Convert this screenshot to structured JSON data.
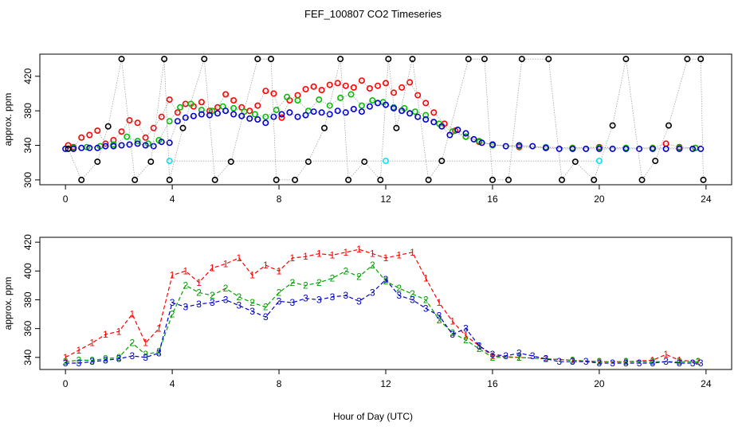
{
  "figure": {
    "title": "FEF_100807  CO2 Timeseries",
    "xlabel": "Hour of Day (UTC)"
  },
  "chart_data": [
    {
      "type": "scatter",
      "ylabel": "approx. ppm",
      "xlim": [
        0,
        24
      ],
      "ylim": [
        300,
        440
      ],
      "xticks": [
        0,
        4,
        8,
        12,
        16,
        20,
        24
      ],
      "yticks": [
        300,
        340,
        380,
        420
      ],
      "grid": false,
      "series": [
        {
          "color": "#ff0000",
          "x": [
            0.1,
            0.3,
            0.6,
            0.9,
            1.2,
            1.5,
            1.8,
            2.1,
            2.4,
            2.7,
            3.0,
            3.3,
            3.6,
            3.9,
            4.2,
            4.5,
            4.8,
            5.1,
            5.4,
            5.7,
            6.0,
            6.3,
            6.6,
            6.9,
            7.2,
            7.5,
            7.8,
            8.1,
            8.4,
            8.7,
            9.0,
            9.3,
            9.6,
            9.9,
            10.2,
            10.5,
            10.8,
            11.1,
            11.4,
            11.7,
            12.0,
            12.3,
            12.6,
            12.9,
            13.2,
            13.5,
            13.8,
            14.2,
            14.6,
            15.0,
            15.5,
            16.0,
            17.0,
            18.0,
            19.0,
            20.0,
            21.0,
            22.0,
            22.5,
            23.0,
            23.6
          ],
          "values": [
            340,
            338,
            349,
            352,
            357,
            342,
            346,
            356,
            369,
            366,
            349,
            360,
            373,
            393,
            378,
            388,
            385,
            390,
            380,
            384,
            399,
            392,
            384,
            380,
            386,
            403,
            400,
            372,
            392,
            398,
            405,
            408,
            404,
            410,
            412,
            409,
            407,
            415,
            406,
            409,
            412,
            401,
            407,
            413,
            398,
            389,
            378,
            365,
            357,
            350,
            344,
            341,
            338,
            337,
            337,
            338,
            337,
            337,
            342,
            338,
            337
          ]
        },
        {
          "color": "#00c000",
          "x": [
            0.3,
            0.8,
            1.3,
            1.8,
            2.3,
            2.7,
            3.1,
            3.5,
            3.9,
            4.3,
            4.7,
            5.1,
            5.5,
            5.9,
            6.3,
            6.7,
            7.1,
            7.5,
            7.9,
            8.3,
            8.7,
            9.1,
            9.5,
            9.9,
            10.3,
            10.7,
            11.1,
            11.5,
            11.9,
            12.3,
            12.7,
            13.1,
            13.5,
            14.0,
            14.5,
            15.0,
            15.5,
            16.0,
            17.0,
            18.0,
            19.0,
            20.0,
            21.0,
            22.0,
            23.0,
            23.6
          ],
          "values": [
            337,
            338,
            339,
            341,
            350,
            345,
            342,
            346,
            368,
            384,
            388,
            381,
            380,
            385,
            383,
            379,
            376,
            373,
            381,
            396,
            392,
            380,
            393,
            386,
            395,
            399,
            386,
            392,
            390,
            384,
            383,
            379,
            375,
            365,
            356,
            350,
            345,
            340,
            339,
            338,
            337,
            337,
            337,
            337,
            337,
            337
          ]
        },
        {
          "color": "#0000cc",
          "x": [
            0.0,
            0.3,
            0.6,
            0.9,
            1.2,
            1.5,
            1.8,
            2.1,
            2.4,
            2.7,
            3.0,
            3.3,
            3.6,
            3.9,
            4.2,
            4.5,
            4.8,
            5.1,
            5.4,
            5.7,
            6.0,
            6.3,
            6.6,
            6.9,
            7.2,
            7.5,
            7.8,
            8.1,
            8.4,
            8.7,
            9.0,
            9.3,
            9.6,
            9.9,
            10.2,
            10.5,
            10.8,
            11.1,
            11.4,
            11.7,
            12.0,
            12.3,
            12.6,
            12.9,
            13.2,
            13.5,
            13.8,
            14.1,
            14.4,
            14.7,
            15.0,
            15.3,
            15.6,
            16.0,
            16.5,
            17.0,
            17.5,
            18.0,
            18.5,
            19.0,
            19.5,
            20.0,
            20.5,
            21.0,
            21.5,
            22.0,
            22.5,
            23.0,
            23.5,
            23.8
          ],
          "values": [
            336,
            336,
            337,
            337,
            337,
            339,
            339,
            340,
            341,
            342,
            340,
            339,
            344,
            343,
            368,
            372,
            374,
            376,
            375,
            377,
            380,
            376,
            374,
            371,
            370,
            366,
            373,
            376,
            378,
            373,
            375,
            379,
            378,
            376,
            380,
            378,
            382,
            379,
            385,
            389,
            387,
            383,
            380,
            377,
            373,
            370,
            367,
            362,
            352,
            358,
            354,
            347,
            343,
            341,
            339,
            340,
            339,
            337,
            336,
            336,
            336,
            336,
            336,
            336,
            336,
            336,
            336,
            336,
            336,
            336
          ]
        },
        {
          "color": "#000000",
          "x": [
            0.1,
            0.6,
            1.2,
            1.6,
            2.1,
            2.6,
            3.2,
            3.7,
            3.9,
            4.4,
            5.2,
            5.6,
            6.2,
            7.2,
            7.7,
            7.9,
            8.6,
            9.1,
            9.7,
            10.3,
            10.6,
            11.2,
            11.8,
            12.1,
            12.4,
            13.0,
            13.6,
            14.1,
            15.1,
            15.7,
            16.0,
            16.6,
            17.1,
            18.1,
            18.6,
            19.1,
            19.8,
            20.5,
            21.0,
            21.6,
            22.1,
            22.6,
            23.3,
            23.8,
            23.9
          ],
          "values": [
            336,
            300,
            321,
            362,
            440,
            300,
            321,
            440,
            300,
            360,
            440,
            300,
            321,
            440,
            440,
            300,
            300,
            321,
            360,
            440,
            300,
            321,
            300,
            440,
            360,
            440,
            300,
            322,
            440,
            440,
            300,
            300,
            440,
            440,
            300,
            321,
            300,
            363,
            440,
            300,
            322,
            363,
            440,
            440,
            300
          ]
        },
        {
          "color": "#00e5ee",
          "x": [
            3.9,
            12.0,
            20.0
          ],
          "values": [
            322,
            322,
            322
          ]
        }
      ]
    },
    {
      "type": "line",
      "ylabel": "approx. ppm",
      "xlim": [
        0,
        24
      ],
      "ylim": [
        335,
        420
      ],
      "xticks": [
        0,
        4,
        8,
        12,
        16,
        20,
        24
      ],
      "yticks": [
        340,
        360,
        380,
        400,
        420
      ],
      "grid": false,
      "series": [
        {
          "label": "1",
          "color": "#ff0000",
          "x": [
            0.0,
            0.5,
            1.0,
            1.5,
            2.0,
            2.5,
            3.0,
            3.5,
            4.0,
            4.5,
            5.0,
            5.5,
            6.0,
            6.5,
            7.0,
            7.5,
            8.0,
            8.5,
            9.0,
            9.5,
            10.0,
            10.5,
            11.0,
            11.5,
            12.0,
            12.5,
            13.0,
            13.5,
            14.0,
            14.5,
            15.0,
            15.5,
            16.0,
            17.0,
            18.0,
            19.0,
            20.0,
            21.0,
            22.0,
            22.5,
            23.0,
            23.7
          ],
          "values": [
            340,
            345,
            350,
            356,
            358,
            370,
            350,
            360,
            397,
            400,
            392,
            402,
            405,
            409,
            397,
            404,
            400,
            409,
            410,
            412,
            411,
            413,
            415,
            412,
            409,
            411,
            413,
            395,
            378,
            365,
            355,
            348,
            341,
            340,
            339,
            338,
            337,
            337,
            338,
            342,
            338,
            337
          ]
        },
        {
          "label": "2",
          "color": "#00a000",
          "x": [
            0.0,
            0.5,
            1.0,
            1.5,
            2.0,
            2.5,
            3.0,
            3.5,
            4.0,
            4.5,
            5.0,
            5.5,
            6.0,
            6.5,
            7.0,
            7.5,
            8.0,
            8.5,
            9.0,
            9.5,
            10.0,
            10.5,
            11.0,
            11.5,
            12.0,
            12.5,
            13.0,
            13.5,
            14.0,
            14.5,
            15.0,
            15.5,
            16.0,
            17.0,
            18.0,
            19.0,
            20.0,
            21.0,
            22.0,
            23.0,
            23.7
          ],
          "values": [
            337,
            338,
            338,
            339,
            340,
            350,
            342,
            344,
            370,
            390,
            385,
            383,
            388,
            382,
            378,
            375,
            385,
            392,
            390,
            392,
            395,
            400,
            396,
            404,
            393,
            388,
            384,
            380,
            366,
            357,
            352,
            346,
            340,
            340,
            339,
            338,
            337,
            337,
            337,
            337,
            337
          ]
        },
        {
          "label": "3",
          "color": "#0000cc",
          "x": [
            0.0,
            0.5,
            1.0,
            1.5,
            2.0,
            2.5,
            3.0,
            3.5,
            4.0,
            4.5,
            5.0,
            5.5,
            6.0,
            6.5,
            7.0,
            7.5,
            8.0,
            8.5,
            9.0,
            9.5,
            10.0,
            10.5,
            11.0,
            11.5,
            12.0,
            12.5,
            13.0,
            13.5,
            14.0,
            14.5,
            15.0,
            15.5,
            16.0,
            16.5,
            17.0,
            17.5,
            18.0,
            18.5,
            19.0,
            19.5,
            20.0,
            20.5,
            21.0,
            21.5,
            22.0,
            22.5,
            23.0,
            23.5,
            23.8
          ],
          "values": [
            336,
            336,
            337,
            338,
            339,
            341,
            340,
            343,
            378,
            375,
            377,
            378,
            380,
            376,
            372,
            368,
            379,
            378,
            381,
            380,
            382,
            383,
            379,
            385,
            394,
            383,
            380,
            374,
            369,
            356,
            360,
            348,
            342,
            341,
            343,
            341,
            339,
            337,
            337,
            337,
            336,
            336,
            336,
            336,
            336,
            337,
            336,
            336,
            336
          ]
        }
      ]
    }
  ]
}
